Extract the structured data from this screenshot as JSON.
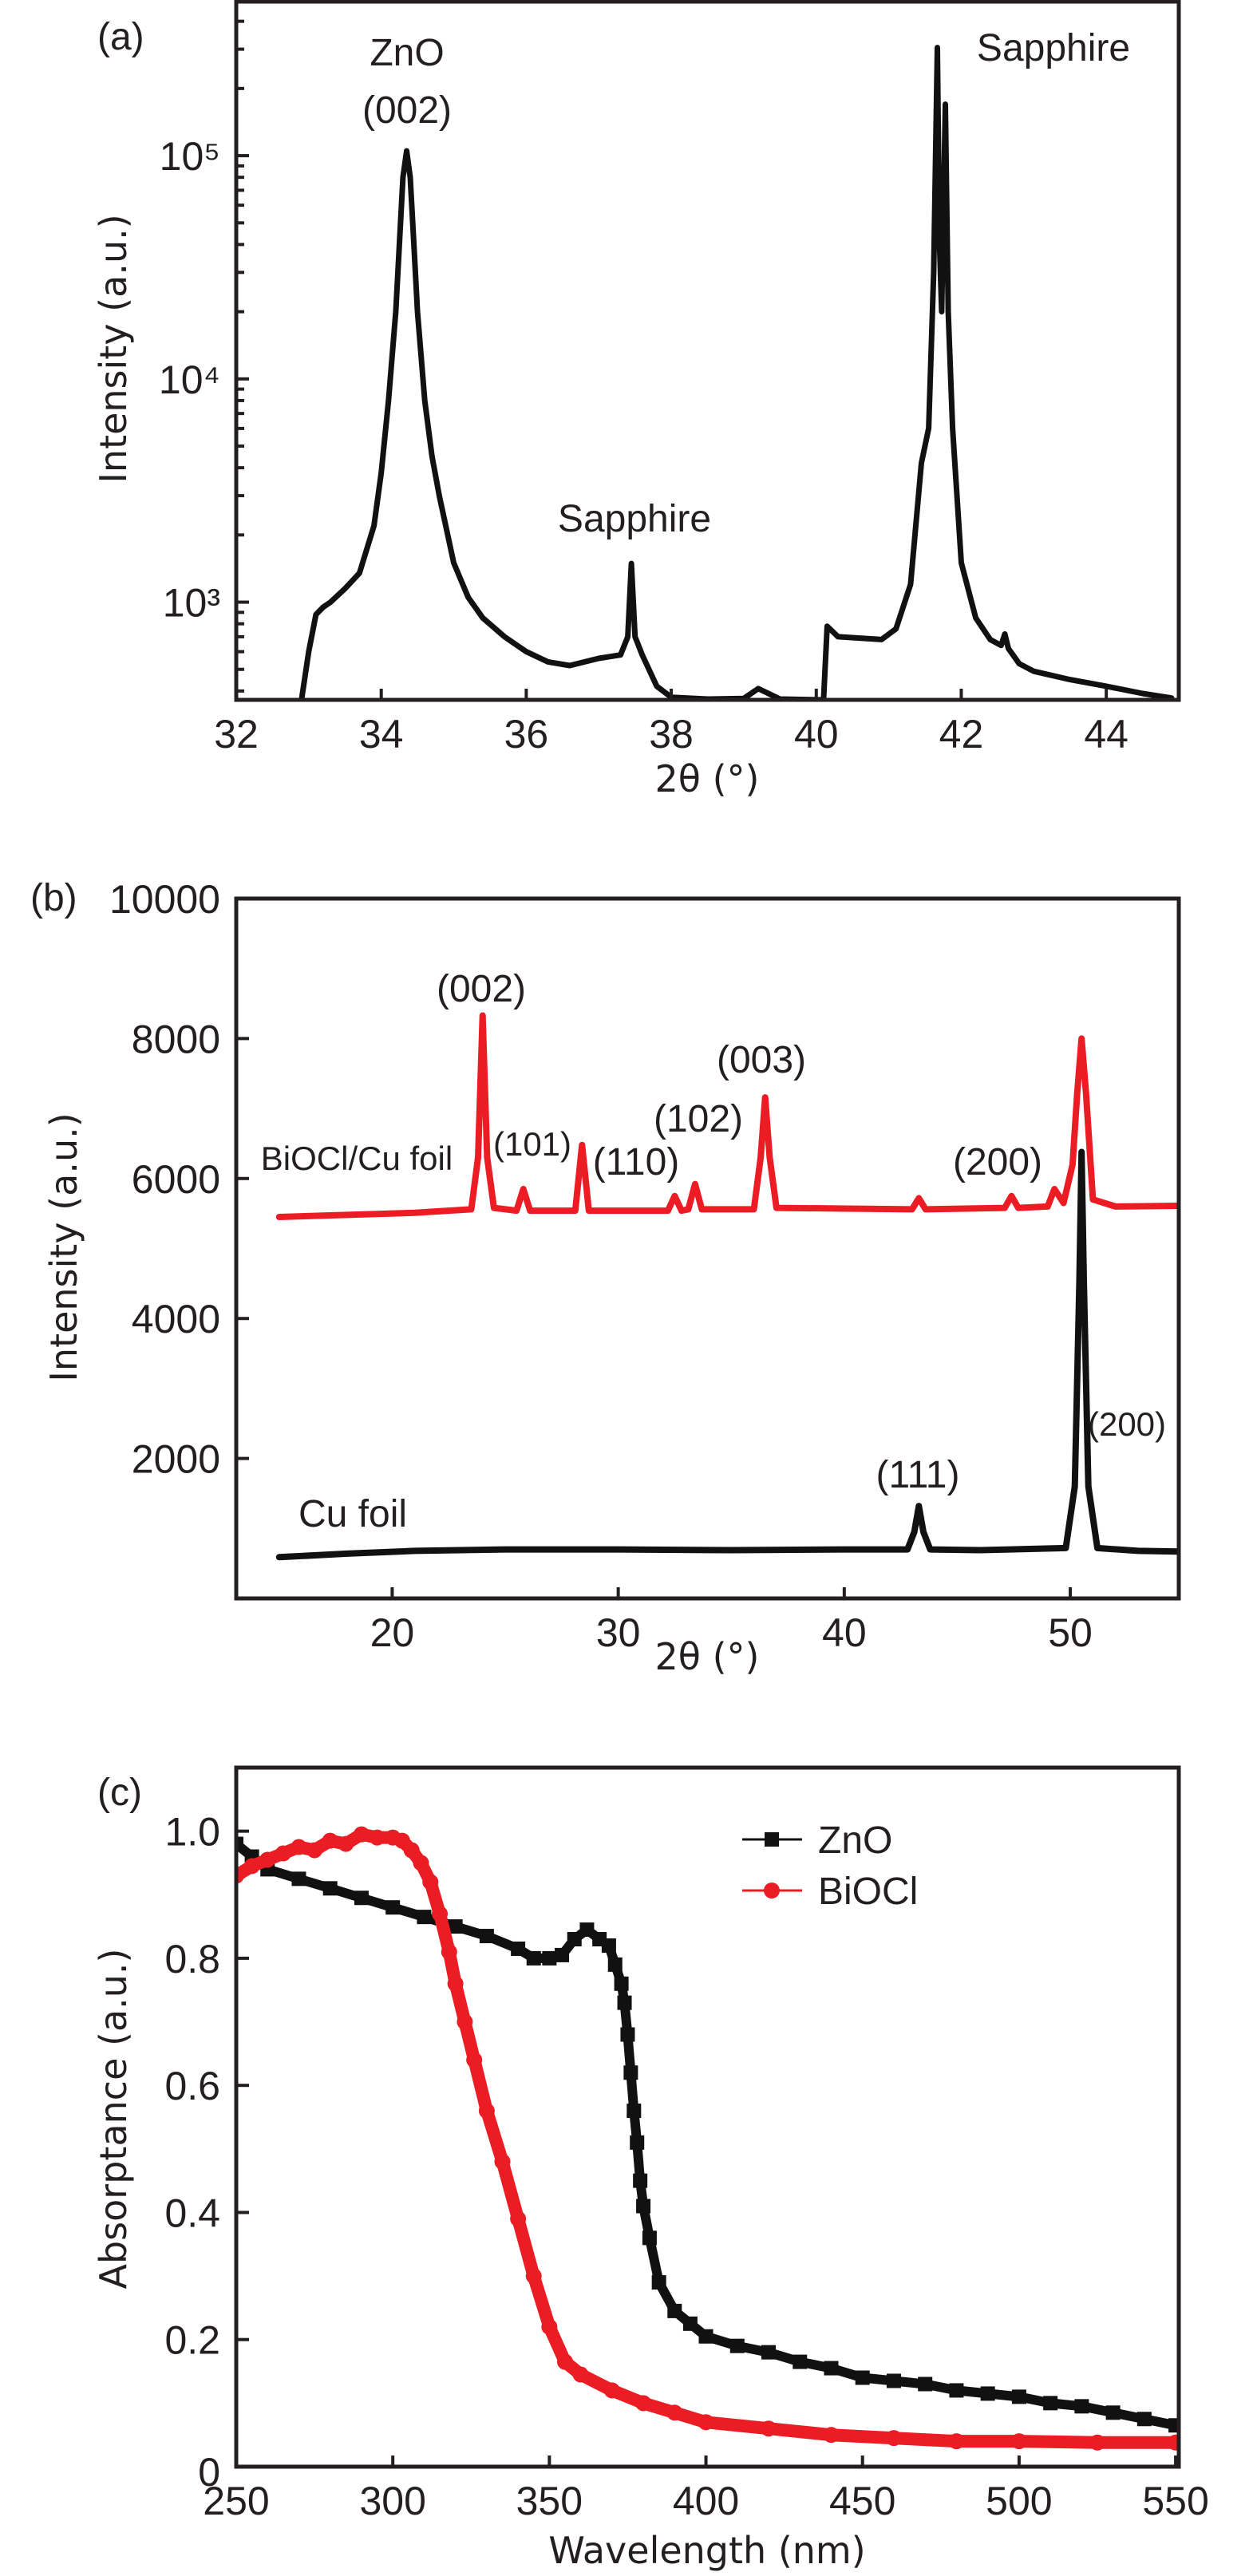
{
  "chart_data": [
    {
      "panel_label": "(a)",
      "type": "line",
      "xlabel": "2θ (°)",
      "ylabel": "Intensity (a.u.)",
      "xlim": [
        32,
        45
      ],
      "ylim": [
        365,
        490000
      ],
      "y_scale": "log",
      "grid": false,
      "x_ticks": [
        32,
        34,
        36,
        38,
        40,
        42,
        44
      ],
      "x_tick_labels": [
        "32",
        "34",
        "36",
        "38",
        "40",
        "42",
        "44"
      ],
      "y_ticks": [
        1000,
        10000,
        100000
      ],
      "y_tick_labels": [
        "10³",
        "10⁴",
        "10⁵"
      ],
      "annotations": [
        "ZnO",
        "(002)",
        "Sapphire",
        "Sapphire"
      ],
      "series": [
        {
          "color": "#111111",
          "x": [
            32.9,
            33.0,
            33.1,
            33.2,
            33.3,
            33.5,
            33.7,
            33.9,
            34.0,
            34.1,
            34.2,
            34.25,
            34.3,
            34.35,
            34.4,
            34.45,
            34.5,
            34.6,
            34.7,
            34.8,
            35.0,
            35.2,
            35.4,
            35.7,
            36.0,
            36.3,
            36.6,
            37.0,
            37.3,
            37.4,
            37.45,
            37.5,
            37.6,
            37.8,
            38.0,
            38.5,
            39.0,
            39.2,
            39.5,
            40.1,
            40.15,
            40.3,
            40.6,
            40.9,
            41.1,
            41.3,
            41.45,
            41.55,
            41.62,
            41.67,
            41.7,
            41.73,
            41.78,
            41.82,
            41.88,
            42.0,
            42.2,
            42.4,
            42.55,
            42.6,
            42.65,
            42.8,
            43.0,
            43.5,
            44.0,
            44.5,
            44.9
          ],
          "y": [
            365,
            600,
            880,
            950,
            1000,
            1150,
            1350,
            2200,
            3800,
            8000,
            20000,
            40000,
            80000,
            105000,
            80000,
            40000,
            20000,
            8000,
            4500,
            3000,
            1500,
            1050,
            850,
            700,
            600,
            540,
            520,
            560,
            580,
            700,
            1490,
            700,
            580,
            420,
            375,
            368,
            370,
            410,
            368,
            365,
            780,
            700,
            690,
            680,
            760,
            1200,
            4200,
            6000,
            30000,
            305000,
            40000,
            20000,
            170000,
            20000,
            6000,
            1500,
            850,
            680,
            640,
            720,
            620,
            530,
            490,
            450,
            420,
            390,
            372
          ]
        }
      ]
    },
    {
      "panel_label": "(b)",
      "type": "line",
      "xlabel": "2θ (°)",
      "ylabel": "Intensity (a.u.)",
      "xlim": [
        13.1,
        54.8
      ],
      "ylim": [
        0,
        10000
      ],
      "grid": false,
      "x_ticks": [
        20,
        30,
        40,
        50
      ],
      "x_tick_labels": [
        "20",
        "30",
        "40",
        "50"
      ],
      "y_ticks": [
        2000,
        4000,
        6000,
        8000,
        10000
      ],
      "y_tick_labels": [
        "2000",
        "4000",
        "6000",
        "8000",
        "10000"
      ],
      "annotations": [
        "(002)",
        "(101)",
        "(110)",
        "(102)",
        "(003)",
        "(200)",
        "(111)",
        "(200)"
      ],
      "series": [
        {
          "name": "BiOCl/Cu foil",
          "color": "#ec1c24",
          "x": [
            15,
            18,
            21,
            23.5,
            23.8,
            24.0,
            24.2,
            24.5,
            25.5,
            25.8,
            26.1,
            28.1,
            28.4,
            28.7,
            32.2,
            32.5,
            32.8,
            33.1,
            33.4,
            33.7,
            36.0,
            36.3,
            36.5,
            36.7,
            37.0,
            43.0,
            43.3,
            43.6,
            47.1,
            47.4,
            47.7,
            49.0,
            49.3,
            49.7,
            50.1,
            50.3,
            50.5,
            50.7,
            51.0,
            52,
            54.8
          ],
          "y": [
            5450,
            5480,
            5510,
            5560,
            6300,
            8330,
            6300,
            5580,
            5540,
            5850,
            5540,
            5540,
            6480,
            5540,
            5540,
            5750,
            5540,
            5560,
            5920,
            5560,
            5560,
            6300,
            7160,
            6300,
            5580,
            5560,
            5720,
            5560,
            5580,
            5750,
            5580,
            5600,
            5850,
            5650,
            6200,
            7200,
            8000,
            7200,
            5700,
            5600,
            5610
          ]
        },
        {
          "name": "Cu foil",
          "color": "#111111",
          "x": [
            15,
            18,
            21,
            25,
            30,
            35,
            40,
            42.8,
            43.1,
            43.3,
            43.5,
            43.8,
            46,
            49.8,
            50.2,
            50.4,
            50.5,
            50.6,
            50.8,
            51.2,
            53,
            54.8
          ],
          "y": [
            590,
            640,
            680,
            700,
            700,
            690,
            700,
            700,
            950,
            1320,
            950,
            700,
            690,
            720,
            1600,
            4500,
            6380,
            4500,
            1600,
            720,
            680,
            670
          ]
        }
      ]
    },
    {
      "panel_label": "(c)",
      "type": "line",
      "xlabel": "Wavelength (nm)",
      "ylabel": "Absorptance (a.u.)",
      "xlim": [
        250,
        551
      ],
      "ylim": [
        0,
        1.1
      ],
      "grid": false,
      "legend_position": "top-right",
      "x_ticks": [
        250,
        300,
        350,
        400,
        450,
        500,
        550
      ],
      "x_tick_labels": [
        "250",
        "300",
        "350",
        "400",
        "450",
        "500",
        "550"
      ],
      "y_ticks": [
        0,
        0.2,
        0.4,
        0.6,
        0.8,
        1.0
      ],
      "y_tick_labels": [
        "0",
        "0.2",
        "0.4",
        "0.6",
        "0.8",
        "1.0"
      ],
      "series": [
        {
          "name": "ZnO",
          "color": "#111111",
          "marker": "square",
          "x": [
            250,
            255,
            260,
            270,
            280,
            290,
            300,
            310,
            320,
            330,
            340,
            345,
            350,
            354,
            358,
            362,
            366,
            369,
            371,
            373,
            374,
            375,
            376,
            377,
            378,
            379,
            380,
            382,
            385,
            390,
            395,
            400,
            410,
            420,
            430,
            440,
            450,
            460,
            470,
            480,
            490,
            500,
            510,
            520,
            530,
            540,
            550
          ],
          "y": [
            0.98,
            0.96,
            0.94,
            0.925,
            0.91,
            0.895,
            0.88,
            0.865,
            0.85,
            0.835,
            0.815,
            0.8,
            0.8,
            0.805,
            0.83,
            0.845,
            0.83,
            0.82,
            0.79,
            0.76,
            0.73,
            0.68,
            0.62,
            0.56,
            0.51,
            0.45,
            0.41,
            0.36,
            0.29,
            0.245,
            0.225,
            0.205,
            0.19,
            0.18,
            0.165,
            0.155,
            0.14,
            0.135,
            0.13,
            0.12,
            0.115,
            0.11,
            0.1,
            0.095,
            0.085,
            0.075,
            0.065
          ]
        },
        {
          "name": "BiOCl",
          "color": "#ec1c24",
          "marker": "circle",
          "x": [
            250,
            255,
            260,
            265,
            270,
            275,
            280,
            285,
            290,
            295,
            300,
            303,
            306,
            309,
            312,
            315,
            318,
            320,
            323,
            326,
            330,
            335,
            340,
            345,
            350,
            355,
            360,
            370,
            380,
            390,
            400,
            420,
            440,
            460,
            480,
            500,
            525,
            550
          ],
          "y": [
            0.93,
            0.945,
            0.955,
            0.965,
            0.975,
            0.97,
            0.985,
            0.98,
            0.995,
            0.99,
            0.99,
            0.985,
            0.97,
            0.95,
            0.92,
            0.87,
            0.81,
            0.76,
            0.7,
            0.64,
            0.56,
            0.48,
            0.39,
            0.3,
            0.22,
            0.165,
            0.145,
            0.12,
            0.1,
            0.085,
            0.07,
            0.06,
            0.05,
            0.045,
            0.04,
            0.04,
            0.038,
            0.038
          ]
        }
      ]
    }
  ]
}
